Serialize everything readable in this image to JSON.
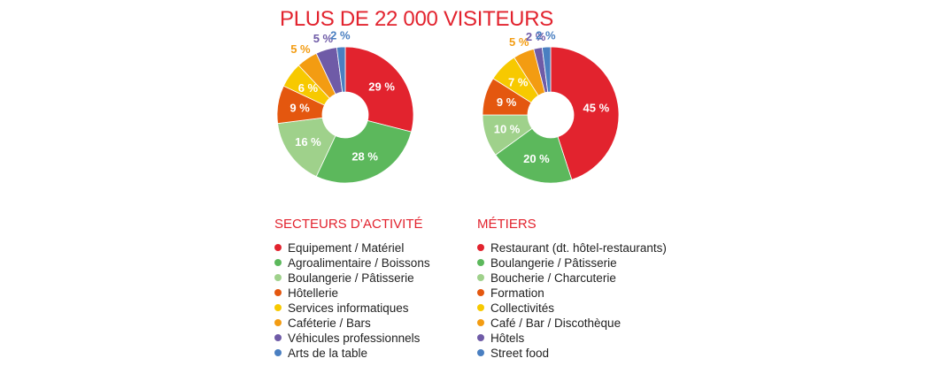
{
  "headline": "PLUS DE 22 000 VISITEURS",
  "chart_data": [
    {
      "type": "pie",
      "title": "SECTEURS D’ACTIVITÉ",
      "categories": [
        "Equipement / Matériel",
        "Agroalimentaire / Boissons",
        "Boulangerie / Pâtisserie",
        "Hôtellerie",
        "Services informatiques",
        "Caféterie / Bars",
        "Véhicules professionnels",
        "Arts de la table"
      ],
      "values": [
        29,
        28,
        16,
        9,
        6,
        5,
        5,
        2
      ],
      "labels": [
        "29 %",
        "28 %",
        "16 %",
        "9 %",
        "6 %",
        "5 %",
        "5 %",
        "2 %"
      ],
      "colors": [
        "#e2232e",
        "#5cb85c",
        "#9fd18b",
        "#e4570f",
        "#f7c900",
        "#f39c12",
        "#6f5ba7",
        "#4a7fc1"
      ],
      "label_colors": [
        "#ffffff",
        "#ffffff",
        "#ffffff",
        "#ffffff",
        "#ffffff",
        "#f39c12",
        "#6f5ba7",
        "#4a7fc1"
      ],
      "hole": "center"
    },
    {
      "type": "pie",
      "title": "MÉTIERS",
      "categories": [
        "Restaurant (dt. hôtel-restaurants)",
        "Boulangerie / Pâtisserie",
        "Boucherie / Charcuterie",
        "Formation",
        "Collectivités",
        "Café / Bar / Discothèque",
        "Hôtels",
        "Street food"
      ],
      "values": [
        45,
        20,
        10,
        9,
        7,
        5,
        2,
        2
      ],
      "labels": [
        "45 %",
        "20 %",
        "10 %",
        "9 %",
        "7 %",
        "5 %",
        "2 %",
        "2 %"
      ],
      "colors": [
        "#e2232e",
        "#5cb85c",
        "#9fd18b",
        "#e4570f",
        "#f7c900",
        "#f39c12",
        "#6f5ba7",
        "#4a7fc1"
      ],
      "label_colors": [
        "#ffffff",
        "#ffffff",
        "#ffffff",
        "#ffffff",
        "#ffffff",
        "#f39c12",
        "#6f5ba7",
        "#4a7fc1"
      ],
      "hole": "center"
    }
  ]
}
